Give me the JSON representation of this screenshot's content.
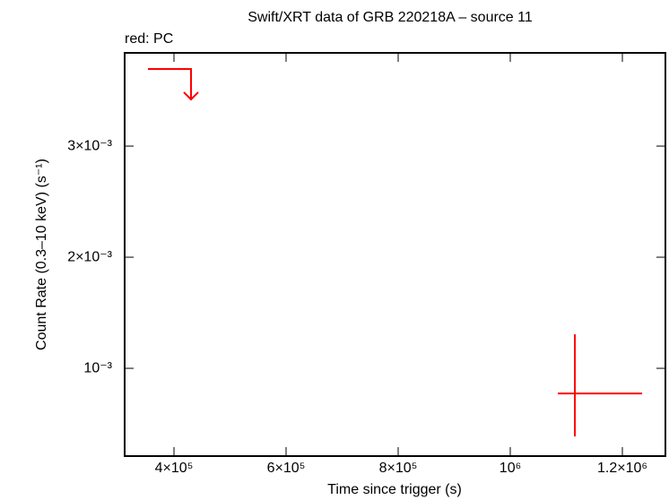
{
  "chart_data": {
    "type": "scatter",
    "title": "Swift/XRT data of GRB 220218A – source 11",
    "subtitle": "red: PC",
    "x_label": "Time since trigger (s)",
    "y_label": "Count Rate (0.3–10 keV) (s⁻¹)",
    "xlim": [
      312000,
      1276800
    ],
    "ylim": [
      0.00021,
      0.003839
    ],
    "xticks": [
      {
        "value": 400000,
        "label": "4×10⁵"
      },
      {
        "value": 600000,
        "label": "6×10⁵"
      },
      {
        "value": 800000,
        "label": "8×10⁵"
      },
      {
        "value": 1000000,
        "label": "10⁶"
      },
      {
        "value": 1200000,
        "label": "1.2×10⁶"
      }
    ],
    "yticks": [
      {
        "value": 0.001,
        "label": "10⁻³"
      },
      {
        "value": 0.002,
        "label": "2×10⁻³"
      },
      {
        "value": 0.003,
        "label": "3×10⁻³"
      }
    ],
    "series": [
      {
        "color": "#ff0000",
        "x": [
          1115200
        ],
        "xerr_minus": [
          30400
        ],
        "xerr_plus": [
          120000
        ],
        "values": [
          0.000774
        ],
        "yerr_minus": [
          0.000387
        ],
        "yerr_plus": [
          0.000532
        ]
      }
    ],
    "upper_limits": {
      "color": "#ff0000",
      "x": [
        392000
      ],
      "xerr_minus": [
        38400
      ],
      "xerr_plus": [
        38400
      ],
      "values": [
        0.003694
      ]
    }
  }
}
